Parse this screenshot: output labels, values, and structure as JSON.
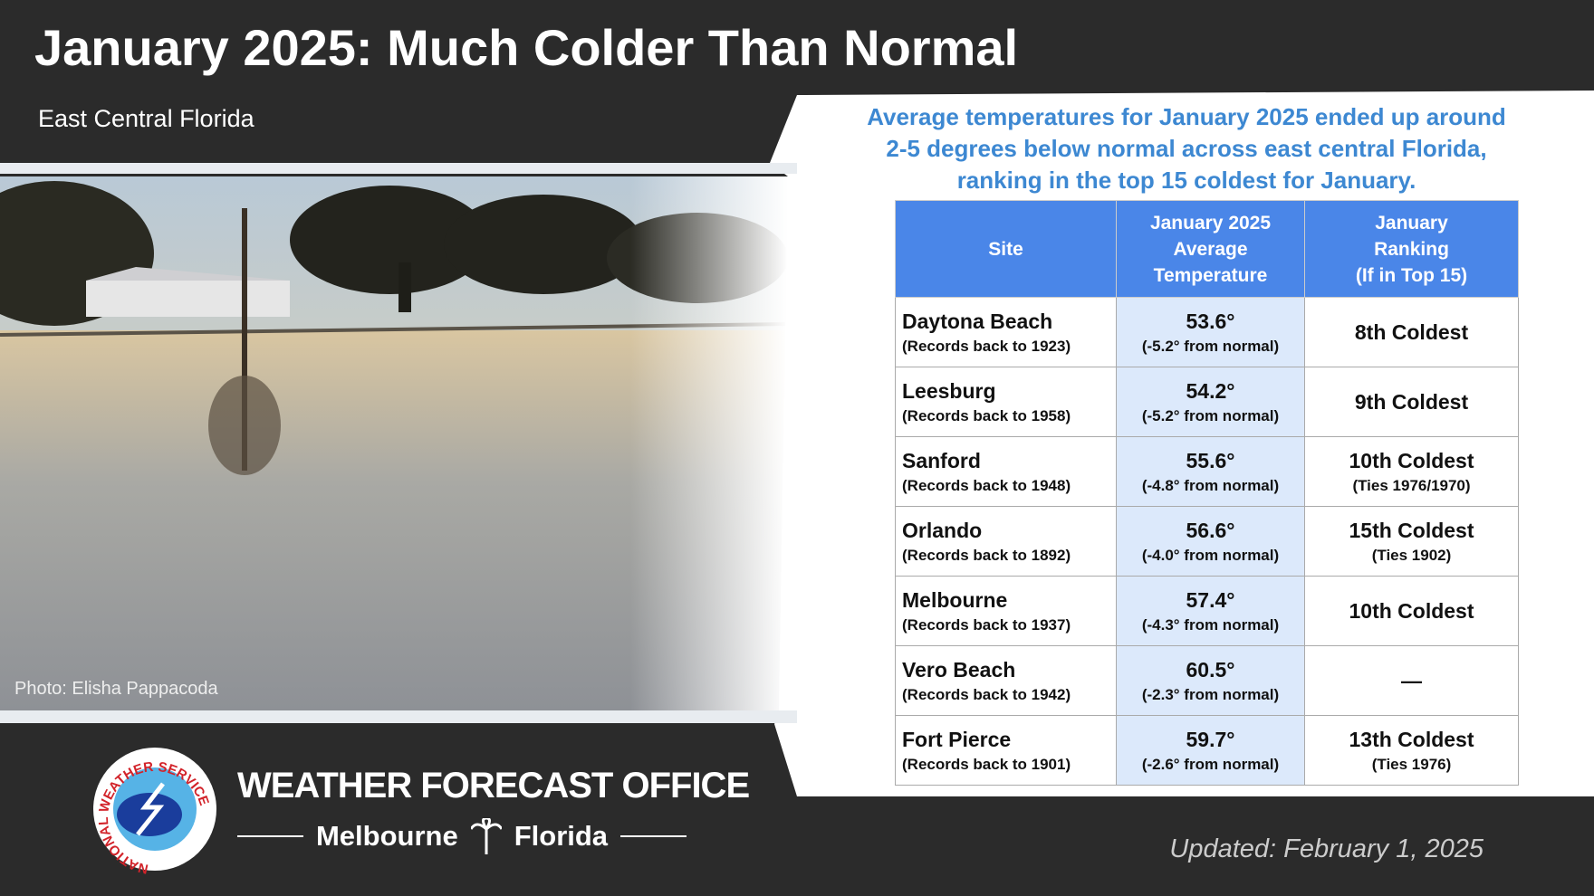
{
  "header": {
    "title": "January 2025: Much Colder Than Normal",
    "subtitle": "East Central Florida"
  },
  "photo": {
    "credit": "Photo: Elisha Pappacoda"
  },
  "summary": [
    "Average temperatures for January 2025 ended up around",
    "2-5 degrees below normal across east central Florida,",
    "ranking in the top 15 coldest for January."
  ],
  "table": {
    "columns": [
      [
        "Site"
      ],
      [
        "January 2025",
        "Average",
        "Temperature"
      ],
      [
        "January",
        "Ranking",
        "(If in Top 15)"
      ]
    ],
    "rows": [
      {
        "site": "Daytona Beach",
        "records": "(Records back to 1923)",
        "temp": "53.6°",
        "departure": "(-5.2° from normal)",
        "ranking": "8th Coldest"
      },
      {
        "site": "Leesburg",
        "records": "(Records back to 1958)",
        "temp": "54.2°",
        "departure": "(-5.2° from normal)",
        "ranking": "9th Coldest"
      },
      {
        "site": "Sanford",
        "records": "(Records back to 1948)",
        "temp": "55.6°",
        "departure": "(-4.8° from normal)",
        "ranking": "10th Coldest",
        "note": "(Ties 1976/1970)"
      },
      {
        "site": "Orlando",
        "records": "(Records back to 1892)",
        "temp": "56.6°",
        "departure": "(-4.0° from normal)",
        "ranking": "15th Coldest",
        "note": "(Ties 1902)"
      },
      {
        "site": "Melbourne",
        "records": "(Records back to 1937)",
        "temp": "57.4°",
        "departure": "(-4.3° from normal)",
        "ranking": "10th Coldest"
      },
      {
        "site": "Vero Beach",
        "records": "(Records back to 1942)",
        "temp": "60.5°",
        "departure": "(-2.3° from normal)",
        "ranking": "—"
      },
      {
        "site": "Fort Pierce",
        "records": "(Records back to 1901)",
        "temp": "59.7°",
        "departure": "(-2.6° from normal)",
        "ranking": "13th Coldest",
        "note": "(Ties 1976)"
      }
    ]
  },
  "footer": {
    "logo_text": "NATIONAL WEATHER SERVICE",
    "office": "WEATHER FORECAST OFFICE",
    "city": "Melbourne",
    "state": "Florida",
    "updated": "Updated: February 1, 2025"
  }
}
